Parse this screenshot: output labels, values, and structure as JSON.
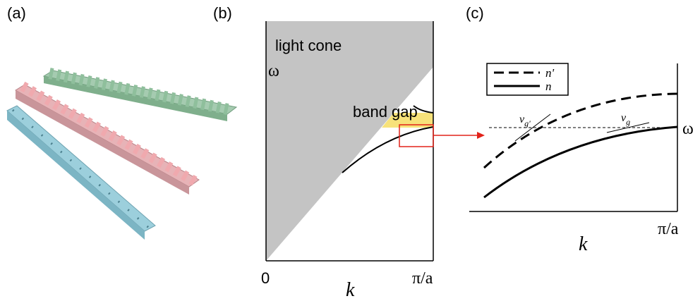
{
  "panels": {
    "a": {
      "label": "(a)"
    },
    "b": {
      "label": "(b)",
      "y_axis": "ω",
      "x_axis": "k",
      "x_start": "0",
      "x_end": "π/a",
      "light_cone": "light cone",
      "band_gap": "band gap"
    },
    "c": {
      "label": "(c)",
      "y_axis": "ω",
      "x_axis": "k",
      "x_end": "π/a",
      "legend": [
        "n'",
        "n"
      ],
      "vg_prime": {
        "symbol": "v",
        "subscript": "g'"
      },
      "vg": {
        "symbol": "v",
        "subscript": "g"
      }
    }
  }
}
